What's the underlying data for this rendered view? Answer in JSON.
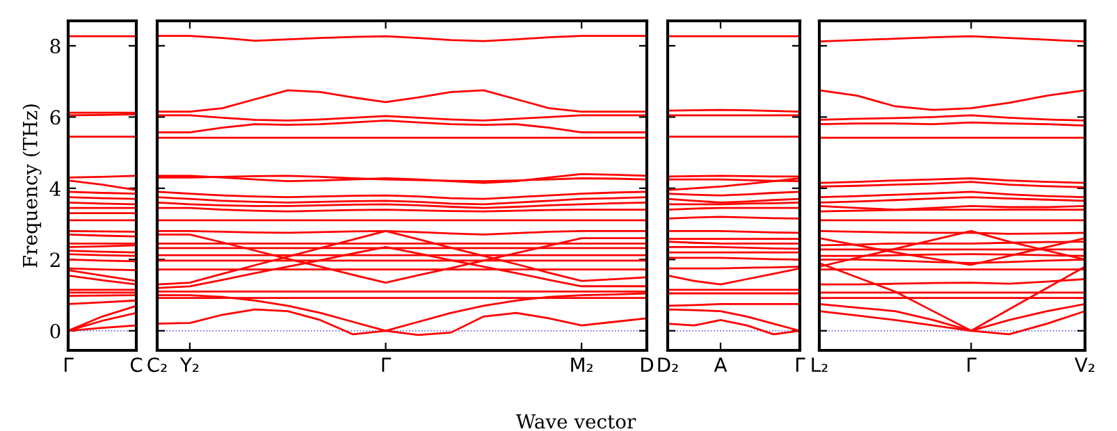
{
  "chart_data": [
    {
      "type": "line",
      "ylabel": "Frequency (THz)",
      "categories": [
        "Γ",
        null,
        "C"
      ],
      "ylim": [
        -0.55,
        8.7
      ],
      "yticks": [
        0,
        2,
        4,
        6,
        8
      ],
      "ref_lines": [
        {
          "axis": "y",
          "value": 0,
          "color": "#6666ff",
          "line_style": "dotted"
        }
      ],
      "series": [
        {
          "color": "#ff0000",
          "values": [
            8.27,
            8.27,
            8.27
          ]
        },
        {
          "color": "#ff0000",
          "values": [
            6.12,
            6.12,
            6.12
          ]
        },
        {
          "color": "#ff0000",
          "values": [
            6.05,
            6.06,
            6.08
          ]
        },
        {
          "color": "#ff0000",
          "values": [
            5.45,
            5.45,
            5.45
          ]
        },
        {
          "color": "#ff0000",
          "values": [
            4.3,
            4.32,
            4.35
          ]
        },
        {
          "color": "#ff0000",
          "values": [
            4.22,
            4.1,
            3.95
          ]
        },
        {
          "color": "#ff0000",
          "values": [
            3.9,
            3.87,
            3.85
          ]
        },
        {
          "color": "#ff0000",
          "values": [
            3.75,
            3.72,
            3.7
          ]
        },
        {
          "color": "#ff0000",
          "values": [
            3.6,
            3.57,
            3.55
          ]
        },
        {
          "color": "#ff0000",
          "values": [
            3.45,
            3.45,
            3.45
          ]
        },
        {
          "color": "#ff0000",
          "values": [
            3.3,
            3.3,
            3.3
          ]
        },
        {
          "color": "#ff0000",
          "values": [
            3.1,
            3.1,
            3.1
          ]
        },
        {
          "color": "#ff0000",
          "values": [
            2.8,
            2.79,
            2.78
          ]
        },
        {
          "color": "#ff0000",
          "values": [
            2.7,
            2.67,
            2.65
          ]
        },
        {
          "color": "#ff0000",
          "values": [
            2.45,
            2.45,
            2.45
          ]
        },
        {
          "color": "#ff0000",
          "values": [
            2.35,
            2.37,
            2.4
          ]
        },
        {
          "color": "#ff0000",
          "values": [
            2.25,
            2.22,
            2.2
          ]
        },
        {
          "color": "#ff0000",
          "values": [
            2.15,
            2.12,
            2.1
          ]
        },
        {
          "color": "#ff0000",
          "values": [
            2.0,
            1.97,
            1.95
          ]
        },
        {
          "color": "#ff0000",
          "values": [
            1.75,
            1.72,
            1.7
          ]
        },
        {
          "color": "#ff0000",
          "values": [
            1.7,
            1.55,
            1.4
          ]
        },
        {
          "color": "#ff0000",
          "values": [
            1.55,
            1.42,
            1.3
          ]
        },
        {
          "color": "#ff0000",
          "values": [
            1.15,
            1.15,
            1.15
          ]
        },
        {
          "color": "#ff0000",
          "values": [
            1.07,
            1.07,
            1.07
          ]
        },
        {
          "color": "#ff0000",
          "values": [
            0.98,
            0.99,
            1.0
          ]
        },
        {
          "color": "#ff0000",
          "values": [
            0.75,
            0.8,
            0.85
          ]
        },
        {
          "color": "#ff0000",
          "values": [
            0.0,
            0.4,
            0.7
          ]
        },
        {
          "color": "#ff0000",
          "values": [
            0.0,
            0.28,
            0.5
          ]
        },
        {
          "color": "#ff0000",
          "values": [
            0.0,
            0.08,
            0.15
          ]
        }
      ]
    },
    {
      "type": "line",
      "xlabel": "Wave vector",
      "tick_labels": "x",
      "categories": [
        "C₂",
        "Y₂",
        null,
        null,
        null,
        null,
        null,
        "Γ",
        null,
        null,
        null,
        null,
        null,
        "M₂",
        null,
        "D"
      ],
      "ylim": [
        -0.55,
        8.7
      ],
      "yticks": [
        0,
        2,
        4,
        6,
        8
      ],
      "ref_lines": [
        {
          "axis": "y",
          "value": 0,
          "color": "#6666ff",
          "line_style": "dotted"
        }
      ],
      "series": [
        {
          "color": "#ff0000",
          "values": [
            8.28,
            8.28,
            8.22,
            8.14,
            8.18,
            8.22,
            8.25,
            8.27,
            8.22,
            8.16,
            8.13,
            8.18,
            8.24,
            8.28,
            8.28,
            8.28
          ]
        },
        {
          "color": "#ff0000",
          "values": [
            6.15,
            6.15,
            6.25,
            6.5,
            6.75,
            6.7,
            6.55,
            6.42,
            6.55,
            6.7,
            6.75,
            6.5,
            6.25,
            6.15,
            6.15,
            6.15
          ]
        },
        {
          "color": "#ff0000",
          "values": [
            5.57,
            5.57,
            5.7,
            5.8,
            5.78,
            5.8,
            5.85,
            5.9,
            5.85,
            5.8,
            5.78,
            5.8,
            5.7,
            5.57,
            5.57,
            5.57
          ]
        },
        {
          "color": "#ff0000",
          "values": [
            6.05,
            6.05,
            5.98,
            5.92,
            5.9,
            5.93,
            5.98,
            6.03,
            5.98,
            5.93,
            5.9,
            5.95,
            6.0,
            6.05,
            6.05,
            6.05
          ]
        },
        {
          "color": "#ff0000",
          "values": [
            5.42,
            5.42,
            5.42,
            5.42,
            5.42,
            5.42,
            5.42,
            5.42,
            5.42,
            5.42,
            5.42,
            5.42,
            5.42,
            5.42,
            5.42,
            5.42
          ]
        },
        {
          "color": "#ff0000",
          "values": [
            4.35,
            4.35,
            4.3,
            4.25,
            4.2,
            4.22,
            4.25,
            4.28,
            4.25,
            4.2,
            4.15,
            4.2,
            4.3,
            4.4,
            4.38,
            4.35
          ]
        },
        {
          "color": "#ff0000",
          "values": [
            4.3,
            4.3,
            4.32,
            4.34,
            4.35,
            4.32,
            4.28,
            4.25,
            4.23,
            4.21,
            4.2,
            4.22,
            4.25,
            4.28,
            4.27,
            4.25
          ]
        },
        {
          "color": "#ff0000",
          "values": [
            3.9,
            3.85,
            3.8,
            3.77,
            3.75,
            3.77,
            3.79,
            3.8,
            3.77,
            3.72,
            3.7,
            3.75,
            3.8,
            3.85,
            3.88,
            3.9
          ]
        },
        {
          "color": "#ff0000",
          "values": [
            3.75,
            3.7,
            3.65,
            3.62,
            3.6,
            3.62,
            3.64,
            3.65,
            3.62,
            3.57,
            3.55,
            3.6,
            3.65,
            3.7,
            3.72,
            3.75
          ]
        },
        {
          "color": "#ff0000",
          "values": [
            3.6,
            3.55,
            3.52,
            3.5,
            3.5,
            3.52,
            3.54,
            3.55,
            3.52,
            3.48,
            3.45,
            3.48,
            3.52,
            3.55,
            3.58,
            3.6
          ]
        },
        {
          "color": "#ff0000",
          "values": [
            3.45,
            3.45,
            3.4,
            3.37,
            3.35,
            3.37,
            3.39,
            3.4,
            3.38,
            3.36,
            3.35,
            3.37,
            3.39,
            3.4,
            3.4,
            3.4
          ]
        },
        {
          "color": "#ff0000",
          "values": [
            3.1,
            3.1,
            3.1,
            3.1,
            3.1,
            3.1,
            3.1,
            3.1,
            3.1,
            3.1,
            3.1,
            3.1,
            3.1,
            3.1,
            3.1,
            3.1
          ]
        },
        {
          "color": "#ff0000",
          "values": [
            2.8,
            2.8,
            2.78,
            2.76,
            2.75,
            2.77,
            2.79,
            2.8,
            2.77,
            2.73,
            2.7,
            2.74,
            2.78,
            2.8,
            2.8,
            2.8
          ]
        },
        {
          "color": "#ff0000",
          "values": [
            2.45,
            2.45,
            2.45,
            2.45,
            2.45,
            2.45,
            2.45,
            2.45,
            2.45,
            2.45,
            2.45,
            2.45,
            2.45,
            2.45,
            2.45,
            2.45
          ]
        },
        {
          "color": "#ff0000",
          "values": [
            2.32,
            2.32,
            2.32,
            2.32,
            2.32,
            2.32,
            2.32,
            2.32,
            2.32,
            2.32,
            2.32,
            2.32,
            2.32,
            2.32,
            2.32,
            2.32
          ]
        },
        {
          "color": "#ff0000",
          "values": [
            2.12,
            2.12,
            2.12,
            2.12,
            2.12,
            2.12,
            2.12,
            2.12,
            2.12,
            2.12,
            2.12,
            2.12,
            2.12,
            2.12,
            2.12,
            2.12
          ]
        },
        {
          "color": "#ff0000",
          "values": [
            1.97,
            1.97,
            1.97,
            1.97,
            1.97,
            1.97,
            1.97,
            1.97,
            1.97,
            1.97,
            1.97,
            1.97,
            1.97,
            1.97,
            1.97,
            1.97
          ]
        },
        {
          "color": "#ff0000",
          "values": [
            1.72,
            1.72,
            1.72,
            1.72,
            1.72,
            1.72,
            1.72,
            1.72,
            1.72,
            1.72,
            1.72,
            1.72,
            1.72,
            1.72,
            1.72,
            1.72
          ]
        },
        {
          "color": "#ff0000",
          "values": [
            2.7,
            2.7,
            2.48,
            2.25,
            2.02,
            1.8,
            1.57,
            1.35,
            1.56,
            1.76,
            1.97,
            2.18,
            2.39,
            2.6,
            2.6,
            2.6
          ]
        },
        {
          "color": "#ff0000",
          "values": [
            1.3,
            1.35,
            1.6,
            1.84,
            2.08,
            2.32,
            2.56,
            2.8,
            2.57,
            2.33,
            2.1,
            1.87,
            1.63,
            1.4,
            1.45,
            1.5
          ]
        },
        {
          "color": "#ff0000",
          "values": [
            1.2,
            1.25,
            1.43,
            1.62,
            1.8,
            1.98,
            2.17,
            2.35,
            2.17,
            1.98,
            1.8,
            1.62,
            1.43,
            1.25,
            1.25,
            1.25
          ]
        },
        {
          "color": "#ff0000",
          "values": [
            1.1,
            1.1,
            1.1,
            1.1,
            1.1,
            1.1,
            1.1,
            1.1,
            1.1,
            1.1,
            1.1,
            1.1,
            1.1,
            1.1,
            1.1,
            1.1
          ]
        },
        {
          "color": "#ff0000",
          "values": [
            0.92,
            0.92,
            0.92,
            0.92,
            0.92,
            0.92,
            0.92,
            0.92,
            0.92,
            0.92,
            0.92,
            0.92,
            0.92,
            0.92,
            0.92,
            0.92
          ]
        },
        {
          "color": "#ff0000",
          "values": [
            1.0,
            1.0,
            0.95,
            0.85,
            0.7,
            0.5,
            0.25,
            0.0,
            0.25,
            0.5,
            0.7,
            0.85,
            0.95,
            1.0,
            1.02,
            1.05
          ]
        },
        {
          "color": "#ff0000",
          "values": [
            0.2,
            0.22,
            0.45,
            0.6,
            0.55,
            0.3,
            -0.1,
            0.0,
            -0.12,
            -0.05,
            0.4,
            0.5,
            0.35,
            0.15,
            0.25,
            0.35
          ]
        }
      ]
    },
    {
      "type": "line",
      "tick_labels": "x",
      "categories": [
        "D₂",
        null,
        "A",
        null,
        null,
        "Γ"
      ],
      "ylim": [
        -0.55,
        8.7
      ],
      "yticks": [
        0,
        2,
        4,
        6,
        8
      ],
      "ref_lines": [
        {
          "axis": "y",
          "value": 0,
          "color": "#6666ff",
          "line_style": "dotted"
        }
      ],
      "series": [
        {
          "color": "#ff0000",
          "values": [
            8.27,
            8.27,
            8.27,
            8.27,
            8.27,
            8.27
          ]
        },
        {
          "color": "#ff0000",
          "values": [
            6.18,
            6.19,
            6.2,
            6.19,
            6.17,
            6.15
          ]
        },
        {
          "color": "#ff0000",
          "values": [
            6.05,
            6.05,
            6.05,
            6.05,
            6.05,
            6.05
          ]
        },
        {
          "color": "#ff0000",
          "values": [
            5.45,
            5.45,
            5.45,
            5.45,
            5.45,
            5.45
          ]
        },
        {
          "color": "#ff0000",
          "values": [
            4.33,
            4.34,
            4.35,
            4.34,
            4.33,
            4.33
          ]
        },
        {
          "color": "#ff0000",
          "values": [
            4.25,
            4.25,
            4.25,
            4.23,
            4.21,
            4.2
          ]
        },
        {
          "color": "#ff0000",
          "values": [
            3.95,
            4.0,
            4.05,
            4.12,
            4.2,
            4.28
          ]
        },
        {
          "color": "#ff0000",
          "values": [
            3.85,
            3.82,
            3.8,
            3.83,
            3.87,
            3.9
          ]
        },
        {
          "color": "#ff0000",
          "values": [
            3.7,
            3.65,
            3.6,
            3.63,
            3.67,
            3.7
          ]
        },
        {
          "color": "#ff0000",
          "values": [
            3.55,
            3.55,
            3.55,
            3.57,
            3.58,
            3.6
          ]
        },
        {
          "color": "#ff0000",
          "values": [
            3.4,
            3.43,
            3.45,
            3.45,
            3.45,
            3.45
          ]
        },
        {
          "color": "#ff0000",
          "values": [
            3.15,
            3.18,
            3.2,
            3.18,
            3.16,
            3.15
          ]
        },
        {
          "color": "#ff0000",
          "values": [
            2.8,
            2.8,
            2.8,
            2.78,
            2.76,
            2.75
          ]
        },
        {
          "color": "#ff0000",
          "values": [
            2.58,
            2.58,
            2.58,
            2.58,
            2.58,
            2.58
          ]
        },
        {
          "color": "#ff0000",
          "values": [
            2.5,
            2.47,
            2.45,
            2.45,
            2.45,
            2.45
          ]
        },
        {
          "color": "#ff0000",
          "values": [
            2.35,
            2.35,
            2.35,
            2.33,
            2.31,
            2.3
          ]
        },
        {
          "color": "#ff0000",
          "values": [
            2.2,
            2.2,
            2.2,
            2.2,
            2.2,
            2.2
          ]
        },
        {
          "color": "#ff0000",
          "values": [
            2.05,
            2.05,
            2.05,
            2.03,
            2.01,
            2.0
          ]
        },
        {
          "color": "#ff0000",
          "values": [
            1.75,
            1.75,
            1.75,
            1.77,
            1.78,
            1.8
          ]
        },
        {
          "color": "#ff0000",
          "values": [
            1.55,
            1.4,
            1.3,
            1.45,
            1.6,
            1.75
          ]
        },
        {
          "color": "#ff0000",
          "values": [
            1.15,
            1.15,
            1.15,
            1.15,
            1.15,
            1.15
          ]
        },
        {
          "color": "#ff0000",
          "values": [
            1.05,
            1.05,
            1.05,
            1.05,
            1.05,
            1.05
          ]
        },
        {
          "color": "#ff0000",
          "values": [
            0.7,
            0.72,
            0.75,
            0.75,
            0.75,
            0.75
          ]
        },
        {
          "color": "#ff0000",
          "values": [
            0.6,
            0.58,
            0.55,
            0.4,
            0.2,
            0.0
          ]
        },
        {
          "color": "#ff0000",
          "values": [
            0.2,
            0.15,
            0.3,
            0.15,
            -0.1,
            0.0
          ]
        }
      ]
    },
    {
      "type": "line",
      "tick_labels": "x",
      "categories": [
        "L₂",
        null,
        null,
        null,
        "Γ",
        null,
        null,
        "V₂"
      ],
      "ylim": [
        -0.55,
        8.7
      ],
      "yticks": [
        0,
        2,
        4,
        6,
        8
      ],
      "ref_lines": [
        {
          "axis": "y",
          "value": 0,
          "color": "#6666ff",
          "line_style": "dotted"
        }
      ],
      "series": [
        {
          "color": "#ff0000",
          "values": [
            8.12,
            8.16,
            8.2,
            8.24,
            8.27,
            8.22,
            8.17,
            8.12
          ]
        },
        {
          "color": "#ff0000",
          "values": [
            6.75,
            6.6,
            6.3,
            6.2,
            6.25,
            6.4,
            6.6,
            6.75
          ]
        },
        {
          "color": "#ff0000",
          "values": [
            5.92,
            5.95,
            5.97,
            6.0,
            6.05,
            5.98,
            5.93,
            5.9
          ]
        },
        {
          "color": "#ff0000",
          "values": [
            5.8,
            5.82,
            5.82,
            5.8,
            5.85,
            5.82,
            5.8,
            5.76
          ]
        },
        {
          "color": "#ff0000",
          "values": [
            5.42,
            5.42,
            5.42,
            5.42,
            5.42,
            5.42,
            5.42,
            5.42
          ]
        },
        {
          "color": "#ff0000",
          "values": [
            4.15,
            4.18,
            4.22,
            4.25,
            4.28,
            4.22,
            4.18,
            4.15
          ]
        },
        {
          "color": "#ff0000",
          "values": [
            4.05,
            4.07,
            4.1,
            4.13,
            4.18,
            4.1,
            4.06,
            4.03
          ]
        },
        {
          "color": "#ff0000",
          "values": [
            3.75,
            3.78,
            3.82,
            3.86,
            3.9,
            3.83,
            3.78,
            3.75
          ]
        },
        {
          "color": "#ff0000",
          "values": [
            3.6,
            3.63,
            3.67,
            3.71,
            3.75,
            3.71,
            3.68,
            3.65
          ]
        },
        {
          "color": "#ff0000",
          "values": [
            3.5,
            3.45,
            3.4,
            3.45,
            3.5,
            3.47,
            3.47,
            3.5
          ]
        },
        {
          "color": "#ff0000",
          "values": [
            3.35,
            3.37,
            3.39,
            3.4,
            3.4,
            3.4,
            3.4,
            3.4
          ]
        },
        {
          "color": "#ff0000",
          "values": [
            3.1,
            3.1,
            3.1,
            3.1,
            3.1,
            3.1,
            3.1,
            3.1
          ]
        },
        {
          "color": "#ff0000",
          "values": [
            2.8,
            2.78,
            2.76,
            2.75,
            2.75,
            2.72,
            2.73,
            2.75
          ]
        },
        {
          "color": "#ff0000",
          "values": [
            2.6,
            2.4,
            2.2,
            2.02,
            1.85,
            2.1,
            2.35,
            2.6
          ]
        },
        {
          "color": "#ff0000",
          "values": [
            1.8,
            2.05,
            2.3,
            2.55,
            2.8,
            2.5,
            2.25,
            2.0
          ]
        },
        {
          "color": "#ff0000",
          "values": [
            2.4,
            2.42,
            2.45,
            2.45,
            2.45,
            2.47,
            2.49,
            2.5
          ]
        },
        {
          "color": "#ff0000",
          "values": [
            2.28,
            2.28,
            2.28,
            2.28,
            2.28,
            2.28,
            2.28,
            2.28
          ]
        },
        {
          "color": "#ff0000",
          "values": [
            2.1,
            2.1,
            2.12,
            2.14,
            2.15,
            2.14,
            2.12,
            2.1
          ]
        },
        {
          "color": "#ff0000",
          "values": [
            2.0,
            2.0,
            1.97,
            1.93,
            1.9,
            1.93,
            1.97,
            2.0
          ]
        },
        {
          "color": "#ff0000",
          "values": [
            1.72,
            1.72,
            1.72,
            1.72,
            1.72,
            1.72,
            1.72,
            1.72
          ]
        },
        {
          "color": "#ff0000",
          "values": [
            1.3,
            1.3,
            1.32,
            1.34,
            1.35,
            1.32,
            1.38,
            1.45
          ]
        },
        {
          "color": "#ff0000",
          "values": [
            1.07,
            1.07,
            1.07,
            1.07,
            1.07,
            1.07,
            1.07,
            1.07
          ]
        },
        {
          "color": "#ff0000",
          "values": [
            0.92,
            0.92,
            0.92,
            0.92,
            0.92,
            0.92,
            0.92,
            0.92
          ]
        },
        {
          "color": "#ff0000",
          "values": [
            1.9,
            1.5,
            1.1,
            0.55,
            0.0,
            0.6,
            1.2,
            1.8
          ]
        },
        {
          "color": "#ff0000",
          "values": [
            0.75,
            0.65,
            0.55,
            0.3,
            0.0,
            0.3,
            0.55,
            0.75
          ]
        },
        {
          "color": "#ff0000",
          "values": [
            0.55,
            0.43,
            0.3,
            0.15,
            0.0,
            -0.1,
            0.2,
            0.55
          ]
        }
      ]
    }
  ]
}
